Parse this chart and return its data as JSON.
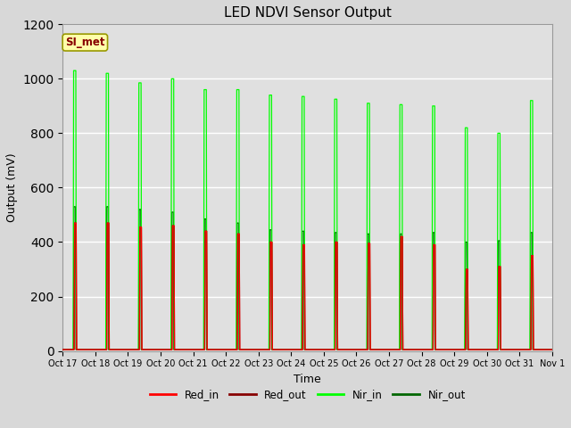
{
  "title": "LED NDVI Sensor Output",
  "xlabel": "Time",
  "ylabel": "Output (mV)",
  "ylim": [
    0,
    1200
  ],
  "background_color": "#d8d8d8",
  "plot_bg_color": "#e0e0e0",
  "annotation_text": "SI_met",
  "annotation_bg": "#ffffaa",
  "annotation_border": "#999900",
  "annotation_text_color": "#880000",
  "xtick_labels": [
    "Oct 17",
    "Oct 18",
    "Oct 19",
    "Oct 20",
    "Oct 21",
    "Oct 22",
    "Oct 23",
    "Oct 24",
    "Oct 25",
    "Oct 26",
    "Oct 27",
    "Oct 28",
    "Oct 29",
    "Oct 30",
    "Oct 31",
    "Nov 1"
  ],
  "legend_labels": [
    "Red_in",
    "Red_out",
    "Nir_in",
    "Nir_out"
  ],
  "legend_colors": [
    "#ff0000",
    "#880000",
    "#00ff00",
    "#006600"
  ],
  "pulse_peaks_red_in": [
    470,
    470,
    455,
    460,
    440,
    430,
    400,
    390,
    400,
    395,
    420,
    390,
    300,
    310,
    350
  ],
  "pulse_peaks_red_out": [
    470,
    470,
    455,
    460,
    440,
    430,
    400,
    390,
    400,
    395,
    420,
    390,
    300,
    310,
    350
  ],
  "pulse_peaks_nir_in": [
    1030,
    1020,
    985,
    1000,
    960,
    960,
    940,
    935,
    925,
    910,
    905,
    900,
    820,
    800,
    920
  ],
  "pulse_peaks_nir_out": [
    530,
    530,
    520,
    510,
    485,
    470,
    445,
    440,
    435,
    430,
    430,
    435,
    400,
    405,
    435
  ],
  "baseline_red_in": 5,
  "baseline_red_out": 5,
  "baseline_nir_in": 5,
  "baseline_nir_out": 5,
  "n_days": 15
}
